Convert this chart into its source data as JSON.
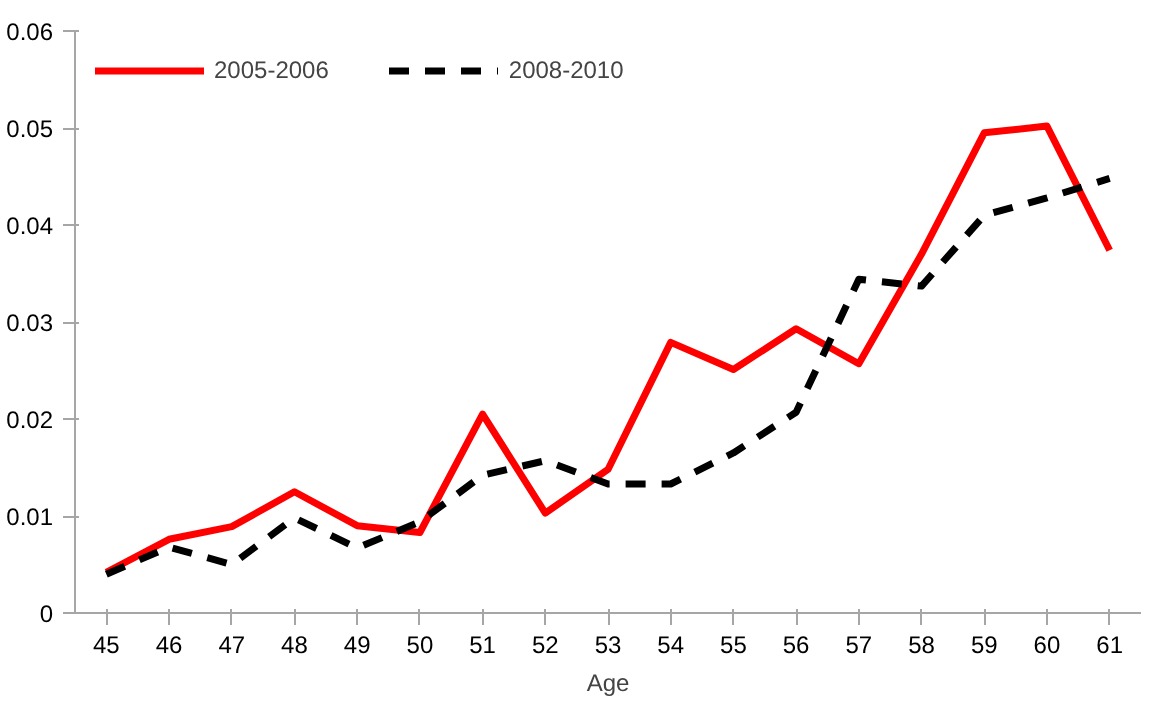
{
  "chart_data": {
    "type": "line",
    "xlabel": "Age",
    "categories": [
      "45",
      "46",
      "47",
      "48",
      "49",
      "50",
      "51",
      "52",
      "53",
      "54",
      "55",
      "56",
      "57",
      "58",
      "59",
      "60",
      "61"
    ],
    "series": [
      {
        "name": "2005-2006",
        "color": "#ff0000",
        "line_style": "solid",
        "values": [
          0.0042,
          0.0076,
          0.0089,
          0.0125,
          0.009,
          0.0083,
          0.0205,
          0.0103,
          0.0148,
          0.0279,
          0.0251,
          0.0293,
          0.0257,
          0.037,
          0.0495,
          0.0502,
          0.0374
        ]
      },
      {
        "name": "2008-2010",
        "color": "#000000",
        "line_style": "dashed",
        "values": [
          0.004,
          0.0068,
          0.005,
          0.0098,
          0.0067,
          0.0094,
          0.0142,
          0.0157,
          0.0133,
          0.0133,
          0.0165,
          0.0207,
          0.0344,
          0.0337,
          0.041,
          0.0428,
          0.0448
        ]
      }
    ],
    "ylim": [
      0,
      0.06
    ],
    "yticks": [
      0,
      0.01,
      0.02,
      0.03,
      0.04,
      0.05,
      0.06
    ],
    "grid": false,
    "legend": "top left",
    "marker": "none"
  }
}
